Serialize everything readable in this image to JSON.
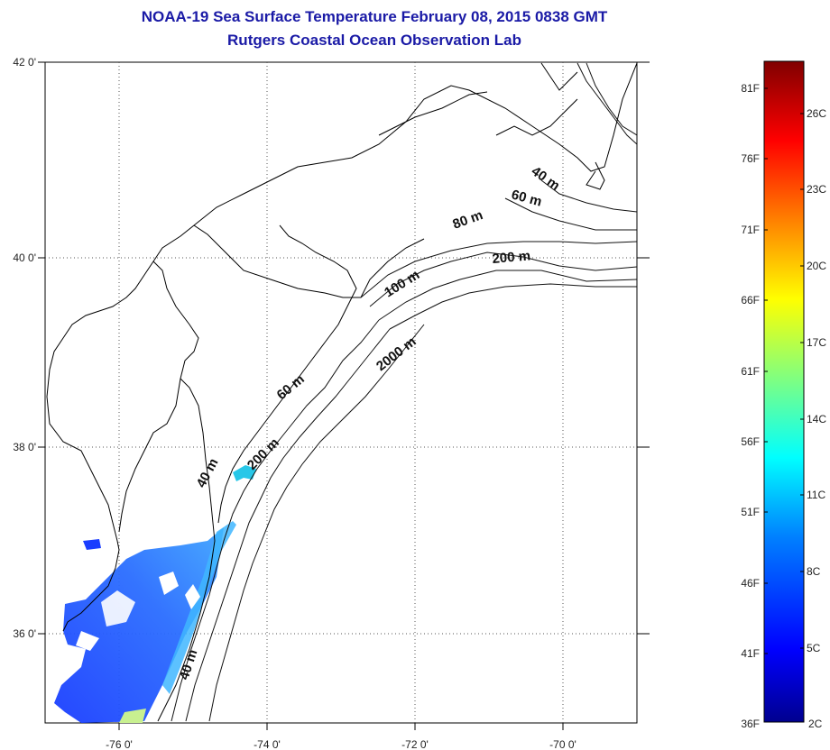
{
  "header": {
    "title": "NOAA-19 Sea Surface Temperature February 08, 2015 0838 GMT",
    "subtitle": "Rutgers Coastal Ocean Observation Lab"
  },
  "map": {
    "lon_ticks": [
      "-76 0'",
      "-74 0'",
      "-72 0'",
      "-70 0'"
    ],
    "lat_ticks": [
      "42 0'",
      "40 0'",
      "38 0'",
      "36 0'"
    ],
    "contour_labels": [
      "40 m",
      "60 m",
      "80 m",
      "200 m",
      "100 m",
      "2000 m",
      "60 m",
      "200 m",
      "40 m",
      "40 m"
    ]
  },
  "colorbar": {
    "fahrenheit": [
      "81F",
      "76F",
      "71F",
      "66F",
      "61F",
      "56F",
      "51F",
      "46F",
      "41F",
      "36F"
    ],
    "celsius": [
      "26C",
      "23C",
      "20C",
      "17C",
      "14C",
      "11C",
      "8C",
      "5C",
      "2C"
    ],
    "colors": [
      "#00008f",
      "#0000ff",
      "#0080ff",
      "#00ffff",
      "#80ff80",
      "#ffff00",
      "#ff8000",
      "#ff0000",
      "#800000"
    ]
  }
}
